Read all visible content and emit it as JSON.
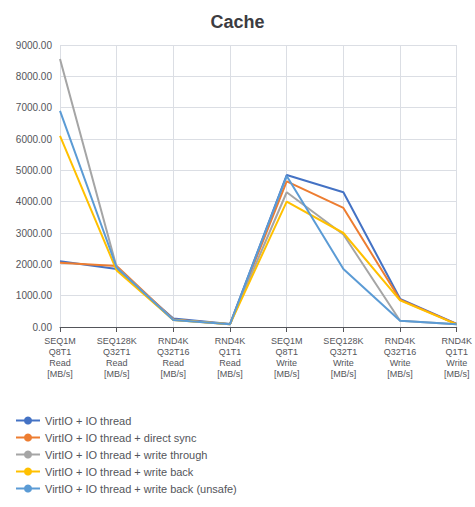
{
  "chart_data": {
    "type": "line",
    "title": "Cache",
    "categories": [
      "SEQ1M\nQ8T1\nRead\n[MB/s]",
      "SEQ128K\nQ32T1\nRead\n[MB/s]",
      "RND4K\nQ32T16\nRead\n[MB/s]",
      "RND4K\nQ1T1\nRead\n[MB/s]",
      "SEQ1M\nQ8T1\nWrite\n[MB/s]",
      "SEQ128K\nQ32T1\nWrite\n[MB/s]",
      "RND4K\nQ32T16\nWrite\n[MB/s]",
      "RND4K\nQ1T1\nWrite\n[MB/s]"
    ],
    "series": [
      {
        "name": "VirtIO + IO thread",
        "color": "#4472C4",
        "values": [
          2100,
          1850,
          270,
          95,
          4850,
          4300,
          900,
          95
        ]
      },
      {
        "name": "VirtIO + IO thread + direct sync",
        "color": "#ED7D31",
        "values": [
          2050,
          1950,
          240,
          90,
          4650,
          3800,
          870,
          90
        ]
      },
      {
        "name": "VirtIO + IO thread + write through",
        "color": "#A5A5A5",
        "values": [
          8550,
          1900,
          220,
          95,
          4300,
          2950,
          200,
          85
        ]
      },
      {
        "name": "VirtIO + IO thread + write back",
        "color": "#FFC000",
        "values": [
          6100,
          1800,
          220,
          90,
          4000,
          3000,
          850,
          85
        ]
      },
      {
        "name": "VirtIO + IO thread + write back (unsafe)",
        "color": "#5B9BD5",
        "values": [
          6900,
          1900,
          220,
          90,
          4820,
          1850,
          200,
          85
        ]
      }
    ],
    "ylim": [
      0,
      9000
    ],
    "yticks": [
      {
        "value": 0,
        "label": "0.00"
      },
      {
        "value": 1000,
        "label": "1000.00"
      },
      {
        "value": 2000,
        "label": "2000.00"
      },
      {
        "value": 3000,
        "label": "3000.00"
      },
      {
        "value": 4000,
        "label": "4000.00"
      },
      {
        "value": 5000,
        "label": "5000.00"
      },
      {
        "value": 6000,
        "label": "6000.00"
      },
      {
        "value": 7000,
        "label": "7000.00"
      },
      {
        "value": 8000,
        "label": "8000.00"
      },
      {
        "value": 9000,
        "label": "9000.00"
      }
    ],
    "grid": true,
    "legend": "lower left"
  }
}
